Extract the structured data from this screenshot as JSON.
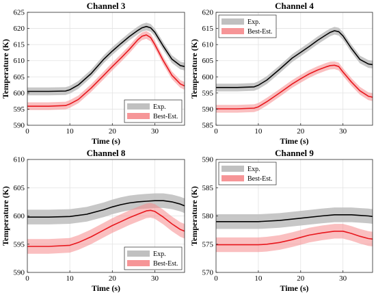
{
  "chart_data": [
    {
      "type": "line",
      "title": "Channel 3",
      "xlabel": "Time (s)",
      "ylabel": "Temperature (K)",
      "xlim": [
        0,
        37
      ],
      "ylim": [
        590,
        625
      ],
      "xticks": [
        "0",
        "10",
        "20",
        "30"
      ],
      "yticks": [
        "590",
        "595",
        "600",
        "605",
        "610",
        "615",
        "620",
        "625"
      ],
      "grid": true,
      "legend_position": "bottom-right",
      "band_halfwidth": 1.2,
      "series": [
        {
          "name": "Exp.",
          "color": "#000000",
          "band_color": "#bdbdbd",
          "x": [
            0,
            5,
            9,
            10,
            12,
            15,
            18,
            20,
            22,
            24,
            26,
            27,
            28,
            29,
            30,
            32,
            34,
            36,
            37
          ],
          "y": [
            600.5,
            600.5,
            600.6,
            601,
            602.5,
            606,
            610.5,
            613,
            615.3,
            617.5,
            619.4,
            620.2,
            620.6,
            620.2,
            618.8,
            614.5,
            610.5,
            608.5,
            608.2
          ]
        },
        {
          "name": "Best-Est.",
          "color": "#e8161c",
          "band_color": "#f58a8c",
          "x": [
            0,
            5,
            9,
            10,
            12,
            15,
            18,
            20,
            22,
            24,
            26,
            27,
            28,
            29,
            30,
            32,
            34,
            36,
            37
          ],
          "y": [
            595.9,
            595.9,
            596.1,
            596.6,
            598,
            601.5,
            605.5,
            608.2,
            610.8,
            613.5,
            616.5,
            617.6,
            618,
            617.2,
            615,
            610,
            605.5,
            602.8,
            602.2
          ]
        }
      ]
    },
    {
      "type": "line",
      "title": "Channel 4",
      "xlabel": "Time (s)",
      "ylabel": "Temperature (K)",
      "xlim": [
        0,
        37
      ],
      "ylim": [
        585,
        620
      ],
      "xticks": [
        "0",
        "10",
        "20",
        "30"
      ],
      "yticks": [
        "585",
        "590",
        "595",
        "600",
        "605",
        "610",
        "615",
        "620"
      ],
      "grid": true,
      "legend_position": "top-left",
      "band_halfwidth": 1.2,
      "series": [
        {
          "name": "Exp.",
          "color": "#000000",
          "band_color": "#bdbdbd",
          "x": [
            0,
            5,
            9,
            10,
            12,
            15,
            18,
            20,
            22,
            24,
            26,
            27,
            28,
            29,
            30,
            32,
            34,
            36,
            37
          ],
          "y": [
            596.7,
            596.7,
            596.9,
            597.4,
            599,
            602.3,
            605.8,
            607.6,
            609.4,
            611.3,
            613,
            613.8,
            614.3,
            614,
            612.7,
            608.8,
            605.4,
            604,
            603.8
          ]
        },
        {
          "name": "Best-Est.",
          "color": "#e8161c",
          "band_color": "#f58a8c",
          "x": [
            0,
            5,
            9,
            10,
            12,
            15,
            18,
            20,
            22,
            24,
            26,
            27,
            28,
            29,
            30,
            32,
            34,
            36,
            37
          ],
          "y": [
            590.1,
            590.1,
            590.3,
            590.7,
            592.3,
            595,
            597.8,
            599.4,
            600.9,
            602.1,
            603.1,
            603.5,
            603.6,
            603.2,
            601.5,
            598.4,
            595.7,
            594,
            593.7
          ]
        }
      ]
    },
    {
      "type": "line",
      "title": "Channel 8",
      "xlabel": "Time (s)",
      "ylabel": "Temperature (K)",
      "xlim": [
        0,
        37
      ],
      "ylim": [
        590,
        610
      ],
      "xticks": [
        "0",
        "10",
        "20",
        "30"
      ],
      "yticks": [
        "590",
        "595",
        "600",
        "605",
        "610"
      ],
      "grid": true,
      "legend_position": "bottom-right",
      "band_halfwidth": 1.3,
      "series": [
        {
          "name": "Exp.",
          "color": "#000000",
          "band_color": "#bdbdbd",
          "x": [
            0,
            5,
            10,
            14,
            18,
            20,
            22,
            24,
            26,
            28,
            30,
            32,
            34,
            36,
            37
          ],
          "y": [
            599.8,
            599.8,
            599.9,
            600.3,
            601.1,
            601.6,
            602,
            602.3,
            602.5,
            602.6,
            602.7,
            602.7,
            602.5,
            602.1,
            601.8
          ]
        },
        {
          "name": "Best-Est.",
          "color": "#e8161c",
          "band_color": "#f58a8c",
          "x": [
            0,
            5,
            10,
            12,
            15,
            18,
            20,
            22,
            24,
            26,
            28,
            29,
            30,
            32,
            34,
            36,
            37
          ],
          "y": [
            594.6,
            594.6,
            594.8,
            595.3,
            596.3,
            597.5,
            598.3,
            599,
            599.7,
            600.3,
            600.9,
            601,
            600.8,
            599.8,
            598.6,
            597.6,
            597.3
          ]
        }
      ]
    },
    {
      "type": "line",
      "title": "Channel 9",
      "xlabel": "Time (s)",
      "ylabel": "Temperature (K)",
      "xlim": [
        0,
        37
      ],
      "ylim": [
        570,
        590
      ],
      "xticks": [
        "0",
        "10",
        "20",
        "30"
      ],
      "yticks": [
        "570",
        "575",
        "580",
        "585",
        "590"
      ],
      "grid": true,
      "legend_position": "top-left",
      "band_halfwidth": 1.3,
      "series": [
        {
          "name": "Exp.",
          "color": "#000000",
          "band_color": "#bdbdbd",
          "x": [
            0,
            5,
            10,
            15,
            20,
            25,
            28,
            30,
            32,
            34,
            36,
            37
          ],
          "y": [
            579,
            579,
            579,
            579.2,
            579.6,
            580,
            580.2,
            580.2,
            580.2,
            580.1,
            580,
            579.9
          ]
        },
        {
          "name": "Best-Est.",
          "color": "#e8161c",
          "band_color": "#f58a8c",
          "x": [
            0,
            5,
            10,
            12,
            15,
            18,
            20,
            22,
            25,
            28,
            29,
            30,
            32,
            34,
            36,
            37
          ],
          "y": [
            574.9,
            574.9,
            574.9,
            575,
            575.3,
            575.8,
            576.2,
            576.6,
            577,
            577.3,
            577.3,
            577.3,
            576.9,
            576.4,
            576,
            575.9
          ]
        }
      ]
    }
  ]
}
